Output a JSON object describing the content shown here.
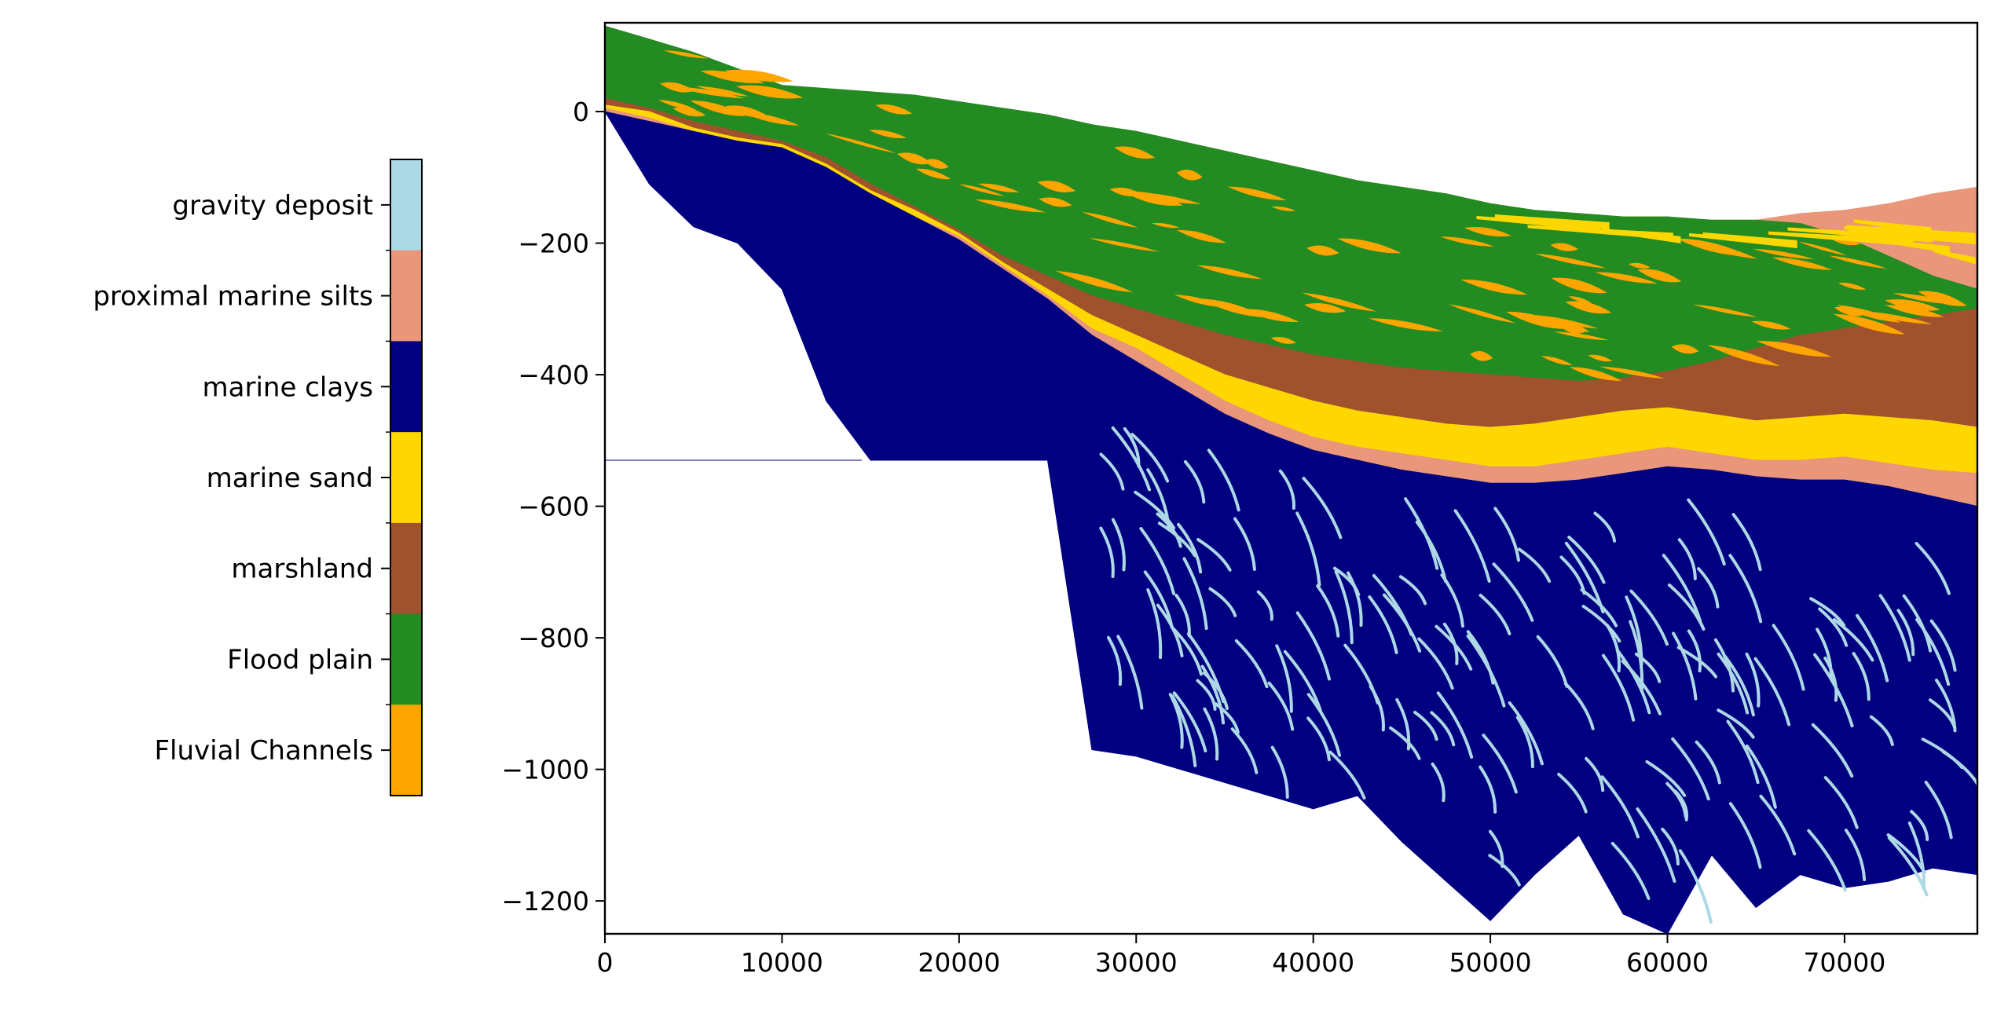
{
  "chart_data": {
    "type": "area",
    "title": "",
    "xlabel": "",
    "ylabel": "",
    "xlim": [
      0,
      77500
    ],
    "ylim": [
      -1250,
      135
    ],
    "xticks": [
      0,
      10000,
      20000,
      30000,
      40000,
      50000,
      60000,
      70000
    ],
    "yticks": [
      0,
      -200,
      -400,
      -600,
      -800,
      -1000,
      -1200
    ],
    "xtick_labels": [
      "0",
      "10000",
      "20000",
      "30000",
      "40000",
      "50000",
      "60000",
      "70000"
    ],
    "ytick_labels": [
      "0",
      "−200",
      "−400",
      "−600",
      "−800",
      "−1000",
      "−1200"
    ],
    "grid": false,
    "legend": {
      "type": "colorbar",
      "placement": "left",
      "entries": [
        {
          "label": "gravity deposit",
          "color": "#add8e6"
        },
        {
          "label": "proximal marine silts",
          "color": "#e9967a"
        },
        {
          "label": "marine clays",
          "color": "#000080"
        },
        {
          "label": "marine sand",
          "color": "#ffd700"
        },
        {
          "label": "marshland",
          "color": "#a0522d"
        },
        {
          "label": "Flood plain",
          "color": "#228b22"
        },
        {
          "label": "Fluvial Channels",
          "color": "#ffa500"
        }
      ]
    },
    "profile": {
      "x": [
        0,
        2500,
        5000,
        7500,
        10000,
        12500,
        15000,
        17500,
        20000,
        22500,
        25000,
        27500,
        30000,
        32500,
        35000,
        37500,
        40000,
        42500,
        45000,
        47500,
        50000,
        52500,
        55000,
        57500,
        60000,
        62500,
        65000,
        67500,
        70000,
        72500,
        75000,
        77500
      ],
      "top": [
        130,
        110,
        90,
        65,
        40,
        35,
        30,
        25,
        15,
        5,
        -5,
        -20,
        -30,
        -45,
        -60,
        -75,
        -90,
        -105,
        -115,
        -125,
        -140,
        -150,
        -155,
        -160,
        -160,
        -165,
        -165,
        -155,
        -150,
        -140,
        -125,
        -115
      ],
      "proximal_silts_base": [
        130,
        110,
        90,
        65,
        40,
        35,
        30,
        25,
        15,
        5,
        -5,
        -20,
        -30,
        -45,
        -60,
        -75,
        -90,
        -105,
        -115,
        -125,
        -140,
        -150,
        -155,
        -160,
        -160,
        -165,
        -165,
        -170,
        -190,
        -220,
        -250,
        -270
      ],
      "flood_plain_base": [
        20,
        5,
        -15,
        -30,
        -45,
        -70,
        -110,
        -145,
        -180,
        -220,
        -250,
        -280,
        -300,
        -320,
        -340,
        -355,
        -370,
        -380,
        -390,
        -395,
        -400,
        -405,
        -410,
        -405,
        -395,
        -380,
        -360,
        -340,
        -330,
        -320,
        -310,
        -300
      ],
      "marshland_base": [
        10,
        0,
        -25,
        -40,
        -50,
        -80,
        -120,
        -150,
        -185,
        -230,
        -270,
        -310,
        -340,
        -370,
        -400,
        -420,
        -440,
        -455,
        -465,
        -475,
        -480,
        -475,
        -465,
        -455,
        -450,
        -460,
        -470,
        -465,
        -460,
        -465,
        -470,
        -480
      ],
      "marine_sand_base": [
        5,
        -10,
        -30,
        -45,
        -55,
        -85,
        -125,
        -160,
        -190,
        -235,
        -280,
        -330,
        -360,
        -400,
        -440,
        -470,
        -495,
        -510,
        -520,
        -530,
        -540,
        -540,
        -530,
        -520,
        -510,
        -520,
        -530,
        -530,
        -525,
        -535,
        -545,
        -550
      ],
      "marine_silts_base": [
        0,
        -15,
        -30,
        -45,
        -55,
        -85,
        -125,
        -160,
        -195,
        -240,
        -285,
        -340,
        -380,
        -420,
        -460,
        -490,
        -515,
        -530,
        -545,
        -555,
        -565,
        -565,
        -560,
        -550,
        -540,
        -545,
        -555,
        -560,
        -560,
        -570,
        -585,
        -600
      ],
      "marine_clays_base": [
        0,
        -110,
        -175,
        -200,
        -270,
        -440,
        -530,
        -530,
        -530,
        -530,
        -530,
        -970,
        -980,
        -1000,
        -1020,
        -1040,
        -1060,
        -1040,
        -1110,
        -1170,
        -1230,
        -1160,
        -1100,
        -1220,
        -1250,
        -1130,
        -1210,
        -1160,
        -1180,
        -1170,
        -1150,
        -1160
      ]
    }
  }
}
